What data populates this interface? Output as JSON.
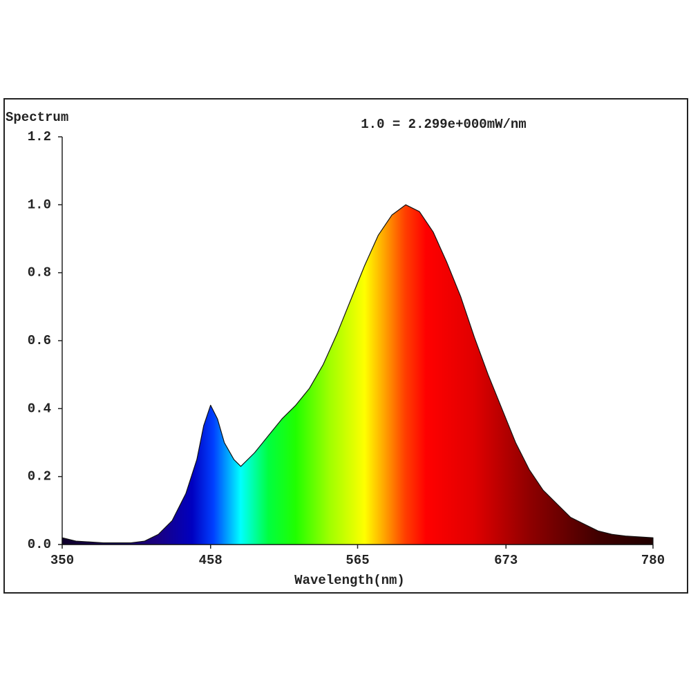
{
  "chart_data": {
    "type": "area",
    "y_label": "Spectrum",
    "annotation": "1.0 = 2.299e+000mW/nm",
    "x_label": "Wavelength(nm)",
    "x": [
      350,
      360,
      380,
      400,
      410,
      420,
      430,
      440,
      448,
      453,
      458,
      463,
      468,
      475,
      480,
      490,
      500,
      510,
      520,
      530,
      540,
      550,
      560,
      570,
      580,
      590,
      600,
      610,
      620,
      630,
      640,
      650,
      660,
      670,
      680,
      690,
      700,
      710,
      720,
      730,
      740,
      750,
      760,
      780
    ],
    "values": [
      0.02,
      0.01,
      0.005,
      0.005,
      0.01,
      0.03,
      0.07,
      0.15,
      0.25,
      0.35,
      0.41,
      0.37,
      0.3,
      0.25,
      0.23,
      0.27,
      0.32,
      0.37,
      0.41,
      0.46,
      0.53,
      0.62,
      0.72,
      0.82,
      0.91,
      0.97,
      1.0,
      0.98,
      0.92,
      0.83,
      0.73,
      0.61,
      0.5,
      0.4,
      0.3,
      0.22,
      0.16,
      0.12,
      0.08,
      0.06,
      0.04,
      0.03,
      0.025,
      0.02
    ],
    "xlim": [
      350,
      780
    ],
    "xticks": [
      350,
      458,
      565,
      673,
      780
    ],
    "ylim": [
      0,
      1.2
    ],
    "yticks": [
      {
        "value": 0,
        "label": "0.0"
      },
      0.2,
      0.4,
      0.6,
      0.8,
      {
        "value": 1,
        "label": "1.0"
      },
      1.2
    ],
    "grid": false
  }
}
